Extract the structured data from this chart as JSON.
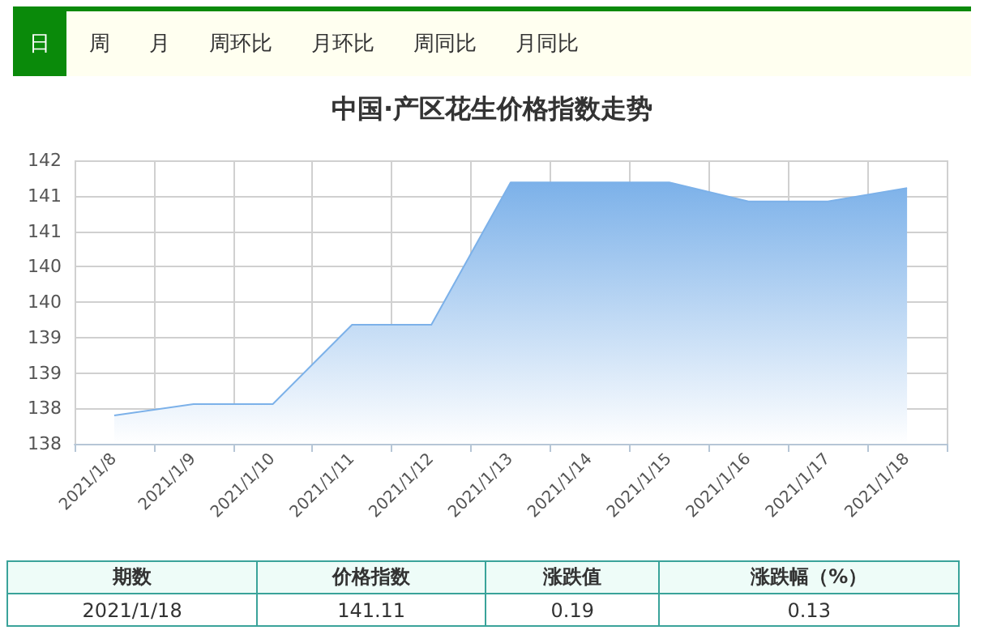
{
  "chart_data": {
    "type": "area",
    "title": "中国·产区花生价格指数走势",
    "categories": [
      "2021/1/8",
      "2021/1/9",
      "2021/1/10",
      "2021/1/11",
      "2021/1/12",
      "2021/1/13",
      "2021/1/14",
      "2021/1/15",
      "2021/1/16",
      "2021/1/17",
      "2021/1/18"
    ],
    "series": [
      {
        "color": "#7cb1e9",
        "values": [
          137.9,
          138.06,
          138.06,
          139.18,
          139.18,
          141.19,
          141.19,
          141.19,
          140.92,
          140.92,
          141.11
        ]
      }
    ],
    "ylim": [
      137.5,
      141.5
    ],
    "yticks": [
      {
        "value": 137.5,
        "label": "138"
      },
      {
        "value": 138,
        "label": "138"
      },
      {
        "value": 138.5,
        "label": "139"
      },
      {
        "value": 139,
        "label": "139"
      },
      {
        "value": 139.5,
        "label": "140"
      },
      {
        "value": 140,
        "label": "140"
      },
      {
        "value": 140.5,
        "label": "141"
      },
      {
        "value": 141,
        "label": "141"
      },
      {
        "value": 141.5,
        "label": "142"
      }
    ],
    "grid": true,
    "marker": "none",
    "line_style": "solid",
    "annotations": [
      "日",
      "周",
      "月",
      "周环比",
      "月环比",
      "周同比",
      "月同比",
      "期数",
      "价格指数",
      "涨跌值",
      "涨跌幅（%）",
      "2021/1/18",
      "141.11",
      "0.19",
      "0.13"
    ]
  }
}
